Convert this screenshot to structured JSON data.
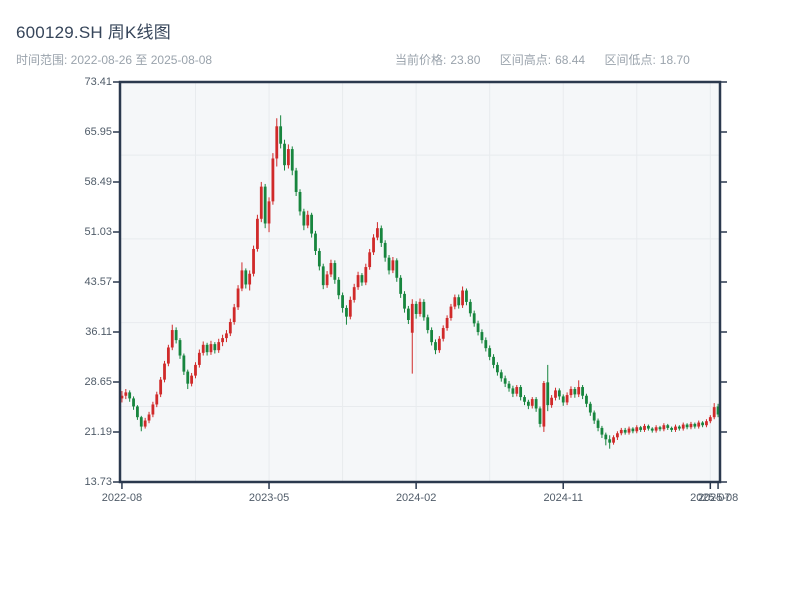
{
  "header": {
    "title": "600129.SH 周K线图",
    "time_range": "时间范围: 2022-08-26 至 2025-08-08",
    "stats": [
      {
        "label": "当前价格:",
        "value": "23.80"
      },
      {
        "label": "区间高点:",
        "value": "68.44"
      },
      {
        "label": "区间低点:",
        "value": "18.70"
      }
    ]
  },
  "chart_data": {
    "type": "candlestick",
    "symbol": "600129.SH",
    "period": "weekly",
    "title": "600129.SH 周K线图",
    "date_start": "2022-08-26",
    "date_end": "2025-08-08",
    "current_price": 23.8,
    "range_high": 68.44,
    "range_low": 18.7,
    "y_axis": {
      "min": 13.73,
      "max": 73.41,
      "tick_labels": [
        "73.41",
        "65.95",
        "58.49",
        "51.03",
        "43.57",
        "36.11",
        "28.65",
        "21.19",
        "13.73"
      ]
    },
    "x_ticks": [
      {
        "week": 0,
        "label": "2022-08"
      },
      {
        "week": 38,
        "label": "2023-05"
      },
      {
        "week": 76,
        "label": "2024-02"
      },
      {
        "week": 114,
        "label": "2024-11"
      },
      {
        "week": 152,
        "label": "2025-07"
      },
      {
        "week": 154,
        "label": "2025-08"
      }
    ],
    "gridlines": {
      "h_values": [
        25,
        37.5,
        50,
        62.5
      ],
      "v_weeks": [
        19,
        38,
        57,
        76,
        95,
        114,
        133,
        152
      ]
    },
    "colors": {
      "up": "#d02a2a",
      "down": "#17853e",
      "axis": "#2b394e",
      "grid": "#e8ebee",
      "plot_bg": "#f5f7f9",
      "label": "#4f5b68",
      "title": "#36455a",
      "subtitle": "#9aa3ac"
    },
    "candles": [
      [
        26.2,
        27.3,
        25.6,
        26.6
      ],
      [
        26.6,
        27.6,
        26.1,
        27.1
      ],
      [
        27.1,
        27.4,
        25.7,
        26.2
      ],
      [
        26.2,
        26.5,
        24.5,
        25.0
      ],
      [
        25.0,
        25.2,
        23.0,
        23.4
      ],
      [
        23.4,
        23.6,
        21.3,
        22.0
      ],
      [
        22.0,
        23.3,
        21.7,
        22.9
      ],
      [
        22.9,
        24.2,
        22.5,
        23.8
      ],
      [
        23.8,
        25.7,
        23.4,
        25.3
      ],
      [
        25.3,
        27.2,
        24.9,
        26.8
      ],
      [
        26.8,
        29.4,
        26.4,
        29.0
      ],
      [
        29.0,
        31.8,
        28.6,
        31.4
      ],
      [
        31.4,
        34.2,
        31.0,
        33.8
      ],
      [
        33.8,
        37.2,
        33.4,
        36.4
      ],
      [
        36.4,
        36.8,
        34.4,
        34.9
      ],
      [
        34.9,
        35.2,
        32.1,
        32.6
      ],
      [
        32.6,
        32.9,
        29.7,
        30.2
      ],
      [
        30.2,
        30.5,
        27.6,
        28.4
      ],
      [
        28.4,
        30.0,
        28.0,
        29.6
      ],
      [
        29.6,
        31.6,
        29.2,
        31.2
      ],
      [
        31.2,
        33.5,
        30.8,
        33.0
      ],
      [
        33.0,
        34.7,
        32.6,
        34.2
      ],
      [
        34.2,
        34.5,
        32.6,
        33.1
      ],
      [
        33.1,
        34.8,
        32.7,
        34.3
      ],
      [
        34.3,
        34.6,
        32.9,
        33.4
      ],
      [
        33.4,
        35.1,
        33.0,
        34.6
      ],
      [
        34.6,
        35.7,
        34.0,
        35.2
      ],
      [
        35.2,
        36.4,
        34.6,
        35.9
      ],
      [
        35.9,
        38.1,
        35.5,
        37.6
      ],
      [
        37.6,
        40.3,
        37.2,
        39.8
      ],
      [
        39.8,
        43.1,
        39.4,
        42.6
      ],
      [
        42.6,
        46.5,
        42.2,
        45.3
      ],
      [
        45.3,
        45.6,
        42.6,
        43.2
      ],
      [
        43.2,
        45.3,
        42.3,
        44.8
      ],
      [
        44.8,
        49.0,
        44.4,
        48.5
      ],
      [
        48.5,
        53.6,
        48.1,
        53.0
      ],
      [
        53.0,
        58.5,
        52.5,
        57.8
      ],
      [
        57.8,
        58.2,
        51.6,
        52.3
      ],
      [
        52.3,
        56.2,
        51.0,
        55.6
      ],
      [
        55.6,
        62.8,
        55.1,
        62.0
      ],
      [
        62.0,
        68.0,
        60.8,
        66.8
      ],
      [
        66.8,
        68.44,
        63.5,
        64.2
      ],
      [
        64.2,
        64.8,
        60.2,
        61.0
      ],
      [
        61.0,
        64.1,
        60.5,
        63.4
      ],
      [
        63.4,
        63.8,
        59.5,
        60.2
      ],
      [
        60.2,
        60.6,
        56.4,
        57.0
      ],
      [
        57.0,
        57.4,
        53.5,
        54.1
      ],
      [
        54.1,
        54.5,
        51.3,
        52.0
      ],
      [
        52.0,
        54.2,
        51.6,
        53.6
      ],
      [
        53.6,
        53.9,
        50.2,
        50.8
      ],
      [
        50.8,
        51.2,
        47.6,
        48.2
      ],
      [
        48.2,
        48.6,
        45.3,
        45.9
      ],
      [
        45.9,
        46.3,
        42.5,
        43.1
      ],
      [
        43.1,
        45.2,
        42.7,
        44.7
      ],
      [
        44.7,
        46.9,
        44.3,
        46.4
      ],
      [
        46.4,
        46.8,
        43.3,
        43.9
      ],
      [
        43.9,
        44.3,
        41.0,
        41.6
      ],
      [
        41.6,
        42.0,
        39.0,
        39.7
      ],
      [
        39.7,
        40.1,
        37.2,
        38.4
      ],
      [
        38.4,
        41.4,
        38.0,
        40.9
      ],
      [
        40.9,
        43.3,
        40.5,
        42.8
      ],
      [
        42.8,
        45.1,
        42.4,
        44.6
      ],
      [
        44.6,
        44.9,
        43.0,
        43.5
      ],
      [
        43.5,
        46.3,
        43.1,
        45.8
      ],
      [
        45.8,
        48.5,
        45.4,
        48.0
      ],
      [
        48.0,
        50.7,
        47.6,
        50.2
      ],
      [
        50.2,
        52.5,
        49.8,
        51.6
      ],
      [
        51.6,
        52.0,
        48.8,
        49.4
      ],
      [
        49.4,
        49.8,
        46.6,
        47.2
      ],
      [
        47.2,
        47.6,
        44.7,
        45.3
      ],
      [
        45.3,
        47.3,
        44.9,
        46.8
      ],
      [
        46.8,
        47.1,
        43.6,
        44.2
      ],
      [
        44.2,
        44.6,
        41.2,
        41.8
      ],
      [
        41.8,
        42.2,
        39.0,
        39.6
      ],
      [
        39.6,
        40.0,
        37.3,
        37.9
      ],
      [
        36.0,
        41.0,
        29.9,
        40.3
      ],
      [
        40.3,
        40.7,
        38.1,
        38.8
      ],
      [
        38.8,
        41.1,
        38.4,
        40.6
      ],
      [
        40.6,
        41.0,
        37.8,
        38.3
      ],
      [
        38.3,
        38.7,
        35.9,
        36.4
      ],
      [
        36.4,
        36.8,
        34.1,
        34.6
      ],
      [
        34.6,
        35.0,
        32.8,
        33.4
      ],
      [
        33.4,
        35.5,
        33.0,
        35.1
      ],
      [
        35.1,
        37.1,
        34.7,
        36.7
      ],
      [
        36.7,
        38.6,
        36.3,
        38.2
      ],
      [
        38.2,
        40.3,
        37.8,
        39.9
      ],
      [
        39.9,
        41.7,
        39.5,
        41.3
      ],
      [
        41.3,
        41.7,
        39.6,
        40.1
      ],
      [
        40.1,
        42.9,
        39.7,
        42.3
      ],
      [
        42.3,
        42.6,
        40.1,
        40.6
      ],
      [
        40.6,
        41.0,
        38.4,
        38.9
      ],
      [
        38.9,
        39.3,
        36.9,
        37.4
      ],
      [
        37.4,
        37.8,
        35.6,
        36.1
      ],
      [
        36.1,
        36.5,
        34.4,
        34.9
      ],
      [
        34.9,
        35.3,
        33.2,
        33.7
      ],
      [
        33.7,
        34.1,
        31.9,
        32.4
      ],
      [
        32.4,
        32.8,
        30.7,
        31.2
      ],
      [
        31.2,
        31.6,
        29.6,
        30.1
      ],
      [
        30.1,
        30.5,
        28.7,
        29.2
      ],
      [
        29.2,
        29.6,
        27.9,
        28.4
      ],
      [
        28.4,
        28.8,
        27.2,
        27.7
      ],
      [
        27.7,
        28.1,
        26.4,
        26.9
      ],
      [
        26.9,
        28.2,
        26.5,
        27.9
      ],
      [
        27.9,
        28.2,
        25.9,
        26.4
      ],
      [
        26.4,
        26.7,
        25.2,
        25.7
      ],
      [
        25.7,
        26.0,
        24.6,
        25.1
      ],
      [
        25.1,
        26.4,
        24.7,
        26.1
      ],
      [
        26.1,
        26.4,
        24.2,
        24.7
      ],
      [
        24.7,
        25.0,
        21.9,
        22.4
      ],
      [
        22.0,
        28.8,
        21.2,
        28.5
      ],
      [
        28.6,
        31.2,
        24.3,
        25.2
      ],
      [
        25.2,
        26.7,
        24.8,
        26.3
      ],
      [
        26.3,
        27.8,
        25.9,
        27.4
      ],
      [
        27.4,
        27.7,
        26.0,
        26.5
      ],
      [
        26.5,
        26.8,
        25.1,
        25.6
      ],
      [
        25.6,
        27.1,
        25.2,
        26.7
      ],
      [
        26.7,
        28.0,
        26.3,
        27.6
      ],
      [
        27.6,
        27.9,
        26.3,
        26.8
      ],
      [
        26.8,
        28.9,
        26.4,
        27.9
      ],
      [
        27.9,
        28.2,
        26.1,
        26.6
      ],
      [
        26.6,
        26.9,
        24.9,
        25.4
      ],
      [
        25.4,
        25.7,
        23.6,
        24.1
      ],
      [
        24.1,
        24.4,
        22.4,
        22.9
      ],
      [
        22.9,
        23.2,
        21.3,
        21.8
      ],
      [
        21.8,
        22.1,
        20.3,
        20.8
      ],
      [
        20.8,
        21.1,
        19.2,
        20.1
      ],
      [
        20.1,
        20.7,
        18.7,
        19.6
      ],
      [
        19.6,
        20.7,
        19.3,
        20.4
      ],
      [
        20.4,
        21.3,
        20.0,
        21.0
      ],
      [
        21.0,
        21.8,
        20.7,
        21.5
      ],
      [
        21.5,
        21.8,
        20.8,
        21.1
      ],
      [
        21.1,
        22.0,
        20.8,
        21.7
      ],
      [
        21.7,
        21.9,
        21.0,
        21.3
      ],
      [
        21.3,
        22.2,
        21.0,
        21.9
      ],
      [
        21.9,
        22.1,
        21.2,
        21.5
      ],
      [
        21.5,
        22.4,
        21.2,
        22.1
      ],
      [
        22.1,
        22.3,
        21.4,
        21.7
      ],
      [
        21.7,
        21.9,
        21.1,
        21.4
      ],
      [
        21.4,
        22.2,
        21.1,
        21.9
      ],
      [
        21.9,
        22.1,
        21.3,
        21.6
      ],
      [
        21.6,
        22.5,
        21.3,
        22.2
      ],
      [
        22.2,
        22.4,
        21.5,
        21.8
      ],
      [
        21.8,
        22.0,
        21.2,
        21.5
      ],
      [
        21.5,
        22.3,
        21.2,
        22.0
      ],
      [
        22.0,
        22.2,
        21.4,
        21.7
      ],
      [
        21.7,
        22.6,
        21.4,
        22.3
      ],
      [
        22.3,
        22.5,
        21.6,
        21.9
      ],
      [
        21.9,
        22.7,
        21.6,
        22.4
      ],
      [
        22.4,
        22.6,
        21.7,
        22.0
      ],
      [
        22.0,
        22.9,
        21.7,
        22.6
      ],
      [
        22.6,
        22.8,
        21.9,
        22.2
      ],
      [
        22.2,
        23.1,
        21.9,
        22.8
      ],
      [
        22.8,
        23.7,
        22.5,
        23.4
      ],
      [
        23.4,
        25.5,
        23.1,
        24.9
      ],
      [
        25.0,
        25.4,
        23.4,
        23.8
      ]
    ]
  }
}
